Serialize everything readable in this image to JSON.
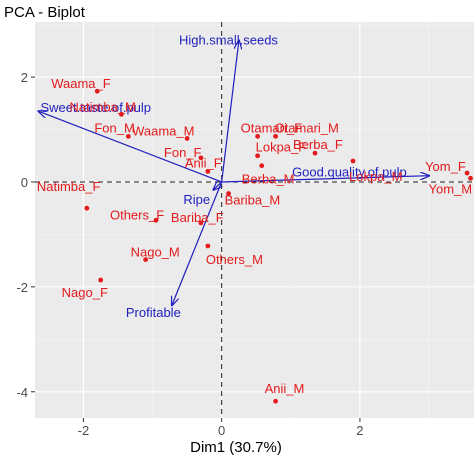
{
  "chart_data": {
    "type": "scatter",
    "title": "PCA - Biplot",
    "xlabel": "Dim1 (30.7%)",
    "ylabel": "",
    "xlim": [
      -2.7,
      3.65
    ],
    "ylim": [
      -4.5,
      3.05
    ],
    "xticks": [
      -2,
      0,
      2
    ],
    "yticks": [
      -4,
      -2,
      0,
      2
    ],
    "grid": true,
    "colors": {
      "points": "#e41a1c",
      "variables": "#1f1fbf",
      "panel": "#ebebeb"
    },
    "individuals": [
      {
        "label": "Waama_F",
        "x": -1.8,
        "y": 1.73
      },
      {
        "label": "Natimba_M",
        "x": -1.45,
        "y": 1.29
      },
      {
        "label": "Fon_M",
        "x": -1.35,
        "y": 0.87
      },
      {
        "label": "Waama_M",
        "x": -0.5,
        "y": 0.83
      },
      {
        "label": "Fon_F",
        "x": -0.3,
        "y": 0.46
      },
      {
        "label": "Anii_F",
        "x": -0.2,
        "y": 0.2
      },
      {
        "label": "Otamari_F",
        "x": 0.52,
        "y": 0.87
      },
      {
        "label": "Otamari_M",
        "x": 0.78,
        "y": 0.87
      },
      {
        "label": "Lokpa_F",
        "x": 0.52,
        "y": 0.5
      },
      {
        "label": "Berba_F",
        "x": 1.35,
        "y": 0.55
      },
      {
        "label": "Berba_M",
        "x": 0.58,
        "y": 0.31
      },
      {
        "label": "Lokpa_M",
        "x": 1.9,
        "y": 0.4
      },
      {
        "label": "Yom_F",
        "x": 3.55,
        "y": 0.17
      },
      {
        "label": "Yom_M",
        "x": 3.6,
        "y": 0.07
      },
      {
        "label": "Natimba_F",
        "x": -1.95,
        "y": -0.5
      },
      {
        "label": "Others_F",
        "x": -0.95,
        "y": -0.73
      },
      {
        "label": "Bariba_M",
        "x": 0.1,
        "y": -0.22
      },
      {
        "label": "Bariba_F",
        "x": -0.3,
        "y": -0.78
      },
      {
        "label": "Nago_M",
        "x": -1.1,
        "y": -1.48
      },
      {
        "label": "Others_M",
        "x": -0.2,
        "y": -1.22
      },
      {
        "label": "Nago_F",
        "x": -1.75,
        "y": -1.87
      },
      {
        "label": "Anii_M",
        "x": 0.78,
        "y": -4.18
      }
    ],
    "variables": [
      {
        "label": "High.small.seeds",
        "x": 0.25,
        "y": 2.7
      },
      {
        "label": "Sweet.taste.of.pulp",
        "x": -2.65,
        "y": 1.35
      },
      {
        "label": "Good.quality.of.pulp",
        "x": 3.0,
        "y": 0.12
      },
      {
        "label": "Ripe",
        "x": -0.12,
        "y": -0.15
      },
      {
        "label": "Profitable",
        "x": -0.72,
        "y": -2.35
      }
    ]
  }
}
